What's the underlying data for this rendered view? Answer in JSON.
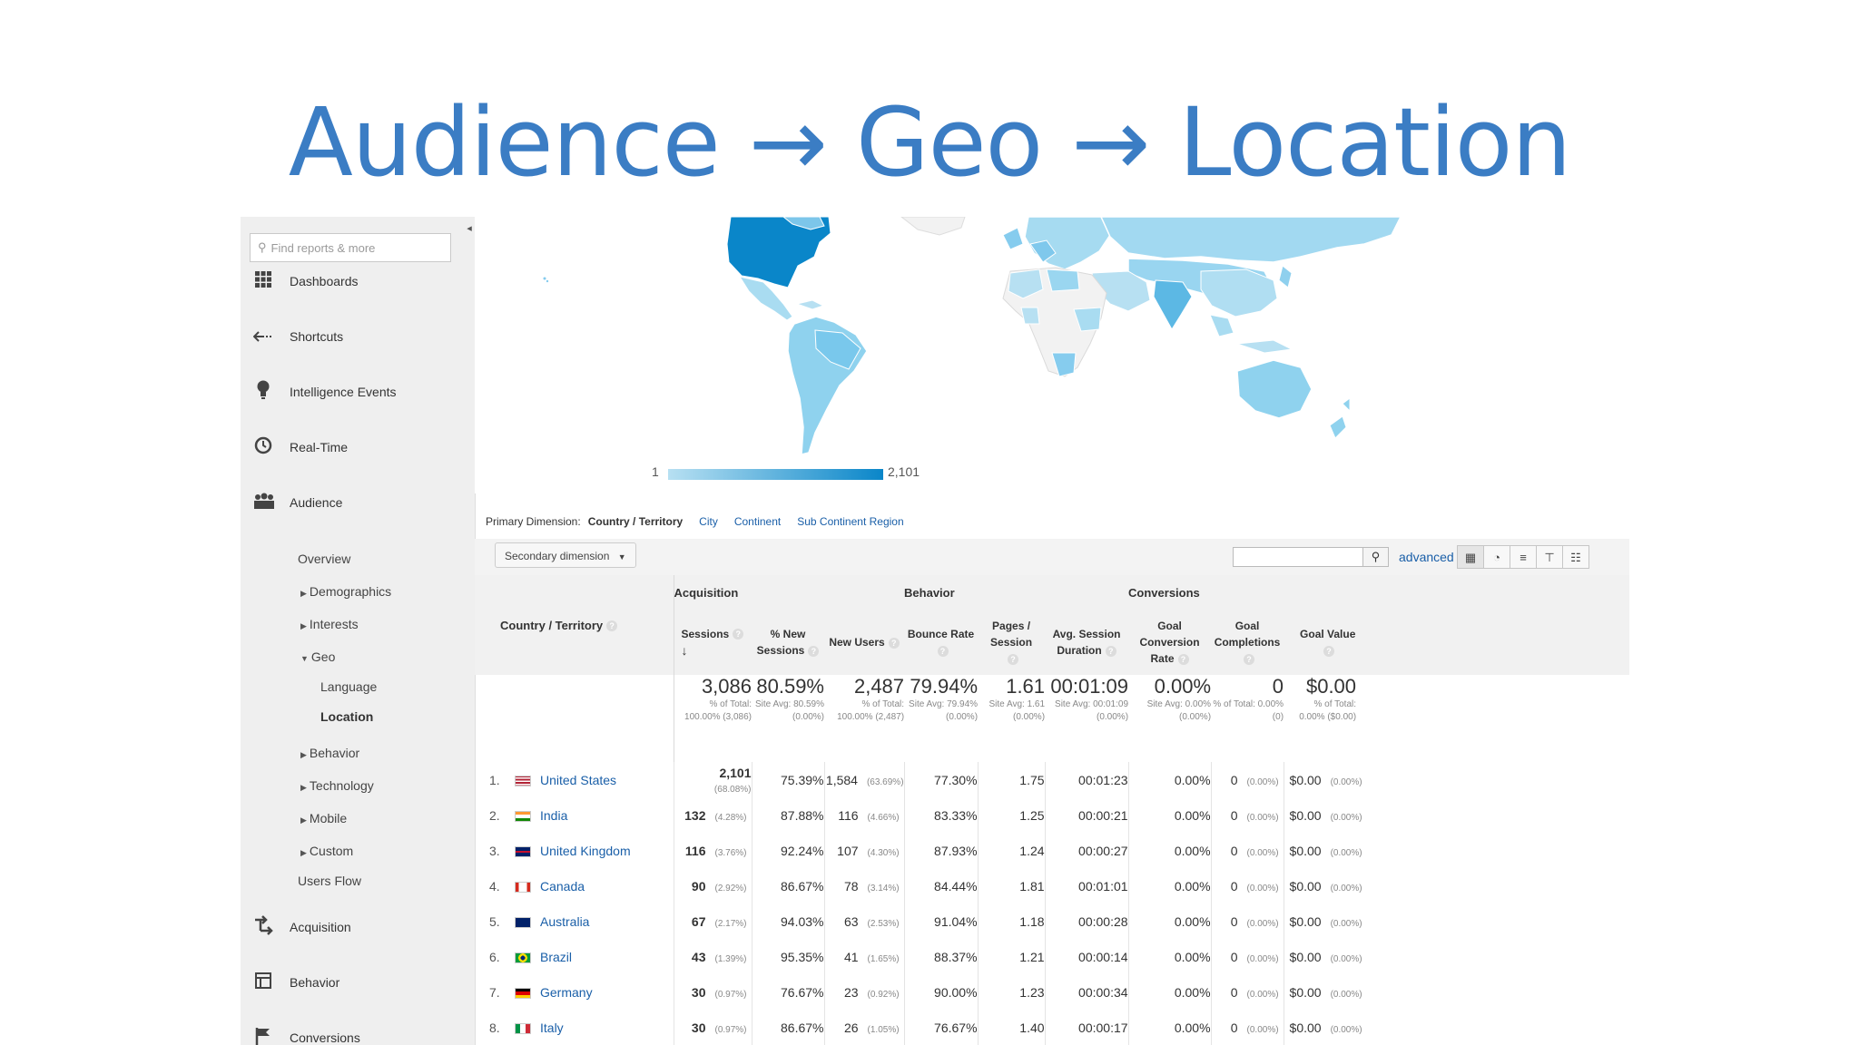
{
  "slide_title": "Audience → Geo → Location",
  "sidebar": {
    "search_placeholder": "Find reports & more",
    "items": [
      {
        "label": "Dashboards",
        "icon": "dashboards-icon"
      },
      {
        "label": "Shortcuts",
        "icon": "shortcuts-icon"
      },
      {
        "label": "Intelligence Events",
        "icon": "intelligence-events-icon"
      },
      {
        "label": "Real-Time",
        "icon": "real-time-icon"
      },
      {
        "label": "Audience",
        "icon": "audience-icon"
      }
    ],
    "audience_sub": {
      "overview": "Overview",
      "demographics": "Demographics",
      "interests": "Interests",
      "geo": "Geo",
      "language": "Language",
      "location": "Location",
      "behavior": "Behavior",
      "technology": "Technology",
      "mobile": "Mobile",
      "custom": "Custom",
      "users_flow": "Users Flow"
    },
    "bottom_items": [
      {
        "label": "Acquisition",
        "icon": "acquisition-icon"
      },
      {
        "label": "Behavior",
        "icon": "behavior-icon"
      },
      {
        "label": "Conversions",
        "icon": "conversions-icon"
      }
    ]
  },
  "map": {
    "legend_min": "1",
    "legend_max": "2,101",
    "colors": {
      "max": "#0a86c9",
      "min": "#b7e0f2",
      "no_data": "#f2f2f2"
    }
  },
  "dimensions": {
    "label": "Primary Dimension:",
    "current": "Country / Territory",
    "links": [
      "City",
      "Continent",
      "Sub Continent Region"
    ]
  },
  "toolbar": {
    "secondary_dimension": "Secondary dimension",
    "advanced": "advanced"
  },
  "table": {
    "country_header": "Country / Territory",
    "groups": {
      "acquisition": "Acquisition",
      "behavior": "Behavior",
      "conversions": "Conversions"
    },
    "columns": {
      "sessions": "Sessions",
      "new_sessions": "% New Sessions",
      "new_users": "New Users",
      "bounce_rate": "Bounce Rate",
      "pages_session": "Pages / Session",
      "avg_duration": "Avg. Session Duration",
      "goal_conv_rate": "Goal Conversion Rate",
      "goal_completions": "Goal Completions",
      "goal_value": "Goal Value"
    },
    "totals": {
      "sessions": "3,086",
      "sessions_sub": "% of Total: 100.00% (3,086)",
      "new_sessions": "80.59%",
      "new_sessions_sub": "Site Avg: 80.59% (0.00%)",
      "new_users": "2,487",
      "new_users_sub": "% of Total: 100.00% (2,487)",
      "bounce_rate": "79.94%",
      "bounce_rate_sub": "Site Avg: 79.94% (0.00%)",
      "pages_session": "1.61",
      "pages_session_sub": "Site Avg: 1.61 (0.00%)",
      "avg_duration": "00:01:09",
      "avg_duration_sub": "Site Avg: 00:01:09 (0.00%)",
      "goal_conv_rate": "0.00%",
      "goal_conv_rate_sub": "Site Avg: 0.00% (0.00%)",
      "goal_completions": "0",
      "goal_completions_sub": "% of Total: 0.00% (0)",
      "goal_value": "$0.00",
      "goal_value_sub": "% of Total: 0.00% ($0.00)"
    },
    "rows": [
      {
        "rank": "1.",
        "country": "United States",
        "sessions": "2,101",
        "sessions_pct": "(68.08%)",
        "new_sessions": "75.39%",
        "new_users": "1,584",
        "new_users_pct": "(63.69%)",
        "bounce": "77.30%",
        "pages": "1.75",
        "duration": "00:01:23",
        "conv": "0.00%",
        "goals": "0",
        "goals_pct": "(0.00%)",
        "value": "$0.00",
        "value_pct": "(0.00%)"
      },
      {
        "rank": "2.",
        "country": "India",
        "sessions": "132",
        "sessions_pct": "(4.28%)",
        "new_sessions": "87.88%",
        "new_users": "116",
        "new_users_pct": "(4.66%)",
        "bounce": "83.33%",
        "pages": "1.25",
        "duration": "00:00:21",
        "conv": "0.00%",
        "goals": "0",
        "goals_pct": "(0.00%)",
        "value": "$0.00",
        "value_pct": "(0.00%)"
      },
      {
        "rank": "3.",
        "country": "United Kingdom",
        "sessions": "116",
        "sessions_pct": "(3.76%)",
        "new_sessions": "92.24%",
        "new_users": "107",
        "new_users_pct": "(4.30%)",
        "bounce": "87.93%",
        "pages": "1.24",
        "duration": "00:00:27",
        "conv": "0.00%",
        "goals": "0",
        "goals_pct": "(0.00%)",
        "value": "$0.00",
        "value_pct": "(0.00%)"
      },
      {
        "rank": "4.",
        "country": "Canada",
        "sessions": "90",
        "sessions_pct": "(2.92%)",
        "new_sessions": "86.67%",
        "new_users": "78",
        "new_users_pct": "(3.14%)",
        "bounce": "84.44%",
        "pages": "1.81",
        "duration": "00:01:01",
        "conv": "0.00%",
        "goals": "0",
        "goals_pct": "(0.00%)",
        "value": "$0.00",
        "value_pct": "(0.00%)"
      },
      {
        "rank": "5.",
        "country": "Australia",
        "sessions": "67",
        "sessions_pct": "(2.17%)",
        "new_sessions": "94.03%",
        "new_users": "63",
        "new_users_pct": "(2.53%)",
        "bounce": "91.04%",
        "pages": "1.18",
        "duration": "00:00:28",
        "conv": "0.00%",
        "goals": "0",
        "goals_pct": "(0.00%)",
        "value": "$0.00",
        "value_pct": "(0.00%)"
      },
      {
        "rank": "6.",
        "country": "Brazil",
        "sessions": "43",
        "sessions_pct": "(1.39%)",
        "new_sessions": "95.35%",
        "new_users": "41",
        "new_users_pct": "(1.65%)",
        "bounce": "88.37%",
        "pages": "1.21",
        "duration": "00:00:14",
        "conv": "0.00%",
        "goals": "0",
        "goals_pct": "(0.00%)",
        "value": "$0.00",
        "value_pct": "(0.00%)"
      },
      {
        "rank": "7.",
        "country": "Germany",
        "sessions": "30",
        "sessions_pct": "(0.97%)",
        "new_sessions": "76.67%",
        "new_users": "23",
        "new_users_pct": "(0.92%)",
        "bounce": "90.00%",
        "pages": "1.23",
        "duration": "00:00:34",
        "conv": "0.00%",
        "goals": "0",
        "goals_pct": "(0.00%)",
        "value": "$0.00",
        "value_pct": "(0.00%)"
      },
      {
        "rank": "8.",
        "country": "Italy",
        "sessions": "30",
        "sessions_pct": "(0.97%)",
        "new_sessions": "86.67%",
        "new_users": "26",
        "new_users_pct": "(1.05%)",
        "bounce": "76.67%",
        "pages": "1.40",
        "duration": "00:00:17",
        "conv": "0.00%",
        "goals": "0",
        "goals_pct": "(0.00%)",
        "value": "$0.00",
        "value_pct": "(0.00%)"
      }
    ]
  }
}
